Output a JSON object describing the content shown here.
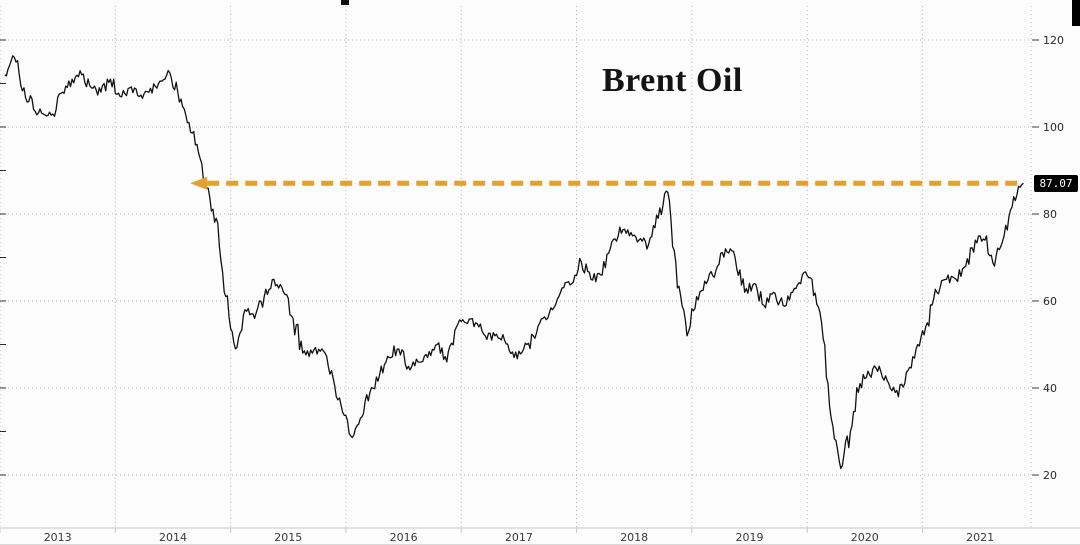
{
  "chart_data": {
    "type": "line",
    "title": "Brent Oil",
    "xlabel": "",
    "ylabel": "",
    "grid": "dotted",
    "line_color": "#111111",
    "x_start_year": 2013,
    "x_resolution": "monthly",
    "xticks": [
      2013,
      2014,
      2015,
      2016,
      2017,
      2018,
      2019,
      2020,
      2021
    ],
    "yticks": [
      20,
      40,
      60,
      80,
      100,
      120
    ],
    "ylim": [
      20,
      120
    ],
    "last_price": 87.07,
    "annotation_line": {
      "value": 87.07,
      "label": "87.07",
      "color": "#E3A02D",
      "style": "dashed",
      "arrow": "left",
      "start_year": 2014.78
    },
    "series": [
      {
        "name": "Brent Oil",
        "monthly_values": [
          112,
          116,
          109,
          104,
          103,
          103,
          108,
          111,
          112,
          109,
          108,
          111,
          107,
          109,
          107,
          108,
          110,
          113,
          108,
          101,
          96,
          86,
          79,
          61,
          49,
          58,
          56,
          61,
          65,
          62,
          56,
          48,
          48,
          49,
          44,
          36,
          29,
          33,
          39,
          43,
          47,
          49,
          45,
          46,
          47,
          50,
          46,
          54,
          55,
          55,
          52,
          52,
          51,
          47,
          49,
          52,
          56,
          58,
          63,
          64,
          69,
          65,
          66,
          72,
          77,
          75,
          74,
          73,
          79,
          85,
          63,
          52,
          61,
          64,
          67,
          72,
          70,
          62,
          64,
          59,
          62,
          59,
          62,
          66,
          65,
          55,
          33,
          21.5,
          30,
          41,
          43,
          45,
          41,
          38,
          44,
          50,
          55,
          62,
          65,
          65,
          68,
          74,
          74,
          68,
          75,
          84
        ],
        "final_value": 87.07
      }
    ]
  }
}
